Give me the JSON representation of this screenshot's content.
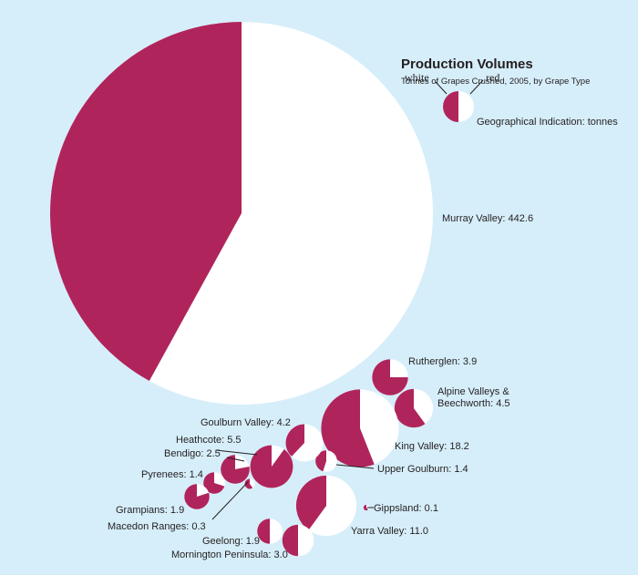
{
  "title": "Production Volumes",
  "subtitle": "Tonnes of Grapes Crushed, 2005, by Grape Type",
  "legend": {
    "white_label": "white",
    "red_label": "red",
    "caption": "Geographical Indication: tonnes"
  },
  "colors": {
    "white": "#ffffff",
    "red": "#b0245c",
    "background": "#d6eefa",
    "text": "#231f20"
  },
  "chart_data": {
    "type": "pie",
    "title": "Production Volumes",
    "subtitle": "Tonnes of Grapes Crushed, 2005, by Grape Type",
    "series_names": [
      "white",
      "red"
    ],
    "regions": [
      {
        "name": "Murray Valley",
        "label": "Murray Valley: 442.6",
        "total": 442.6,
        "red_share": 0.42
      },
      {
        "name": "Rutherglen",
        "label": "Rutherglen: 3.9",
        "total": 3.9,
        "red_share": 0.75
      },
      {
        "name": "Alpine Valleys & Beechworth",
        "label_line1": "Alpine Valleys &",
        "label_line2": "Beechworth: 4.5",
        "total": 4.5,
        "red_share": 0.6
      },
      {
        "name": "King Valley",
        "label": "King Valley: 18.2",
        "total": 18.2,
        "red_share": 0.56
      },
      {
        "name": "Upper Goulburn",
        "label": "Upper Goulburn: 1.4",
        "total": 1.4,
        "red_share": 0.45
      },
      {
        "name": "Goulburn Valley",
        "label": "Goulburn Valley: 4.2",
        "total": 4.2,
        "red_share": 0.38
      },
      {
        "name": "Heathcote",
        "label": "Heathcote: 5.5",
        "total": 5.5,
        "red_share": 0.9
      },
      {
        "name": "Bendigo",
        "label": "Bendigo: 2.5",
        "total": 2.5,
        "red_share": 0.78
      },
      {
        "name": "Pyrenees",
        "label": "Pyrenees: 1.4",
        "total": 1.4,
        "red_share": 0.7
      },
      {
        "name": "Grampians",
        "label": "Grampians: 1.9",
        "total": 1.9,
        "red_share": 0.8
      },
      {
        "name": "Macedon Ranges",
        "label": "Macedon Ranges: 0.3",
        "total": 0.3,
        "red_share": 0.6
      },
      {
        "name": "Yarra Valley",
        "label": "Yarra Valley: 11.0",
        "total": 11.0,
        "red_share": 0.4
      },
      {
        "name": "Gippsland",
        "label": "Gippsland: 0.1",
        "total": 0.1,
        "red_share": 0.6
      },
      {
        "name": "Geelong",
        "label": "Geelong: 1.9",
        "total": 1.9,
        "red_share": 0.5
      },
      {
        "name": "Mornington Peninsula",
        "label": "Mornington Peninsula: 3.0",
        "total": 3.0,
        "red_share": 0.5
      }
    ]
  }
}
